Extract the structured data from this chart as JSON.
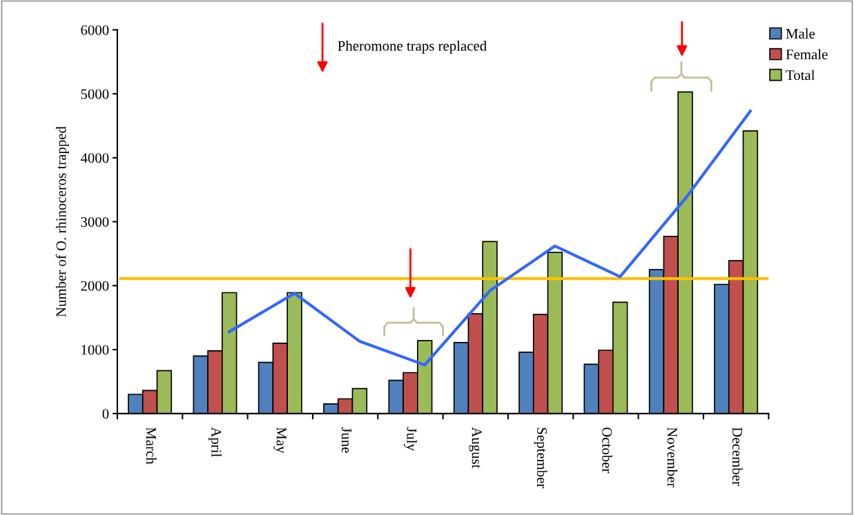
{
  "chart_data": {
    "type": "bar",
    "ylabel": "Number of O. rhinoceros trapped",
    "categories": [
      "March",
      "April",
      "May",
      "June",
      "July",
      "August",
      "September",
      "October",
      "November",
      "December"
    ],
    "series": [
      {
        "name": "Male",
        "color": "#4f81bd",
        "values": [
          300,
          900,
          800,
          150,
          520,
          1110,
          960,
          770,
          2250,
          2020
        ]
      },
      {
        "name": "Female",
        "color": "#c0504d",
        "values": [
          360,
          980,
          1100,
          230,
          640,
          1560,
          1550,
          990,
          2770,
          2390
        ]
      },
      {
        "name": "Total",
        "color": "#9bbb59",
        "values": [
          670,
          1890,
          1890,
          390,
          1140,
          2690,
          2520,
          1740,
          5030,
          4420
        ]
      },
      {
        "type": "line",
        "color": "#3366ff",
        "values": [
          null,
          1280,
          1880,
          1130,
          760,
          1920,
          2620,
          2140,
          3360,
          4730
        ]
      }
    ],
    "ylim": [
      0,
      6000
    ],
    "yticks": [
      0,
      1000,
      2000,
      3000,
      4000,
      5000,
      6000
    ],
    "ref_lines": [
      {
        "axis": "y",
        "value": 2110,
        "color": "#ffc000"
      }
    ],
    "annotations": [
      "Pheromone traps replaced"
    ],
    "legend": "top right",
    "grid": false
  }
}
